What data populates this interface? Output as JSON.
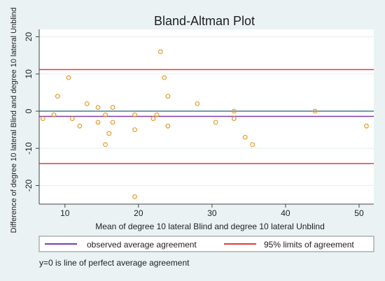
{
  "chart_data": {
    "type": "scatter",
    "title": "Bland-Altman Plot",
    "xlabel": "Mean of degree 10 lateral Blind and degree 10 lateral Unblind",
    "ylabel": "Difference of degree 10 lateral Blind and degree 10 lateral Unblind",
    "xlim": [
      6.5,
      52
    ],
    "ylim": [
      -25,
      22
    ],
    "x_ticks": [
      10,
      20,
      30,
      40,
      50
    ],
    "y_ticks": [
      -20,
      -10,
      0,
      10,
      20
    ],
    "grid": true,
    "points": [
      {
        "x": 7.0,
        "y": -2
      },
      {
        "x": 8.5,
        "y": -1
      },
      {
        "x": 9.0,
        "y": 4
      },
      {
        "x": 10.5,
        "y": 9
      },
      {
        "x": 11.0,
        "y": -2
      },
      {
        "x": 12.0,
        "y": -4
      },
      {
        "x": 13.0,
        "y": 2
      },
      {
        "x": 14.5,
        "y": 1
      },
      {
        "x": 14.5,
        "y": -3
      },
      {
        "x": 15.5,
        "y": -1
      },
      {
        "x": 15.5,
        "y": -9
      },
      {
        "x": 16.0,
        "y": -6
      },
      {
        "x": 16.5,
        "y": 1
      },
      {
        "x": 16.5,
        "y": -3
      },
      {
        "x": 19.5,
        "y": -1
      },
      {
        "x": 19.5,
        "y": -5
      },
      {
        "x": 19.5,
        "y": -23
      },
      {
        "x": 22.0,
        "y": -2
      },
      {
        "x": 22.5,
        "y": -1
      },
      {
        "x": 23.0,
        "y": 16
      },
      {
        "x": 23.5,
        "y": 9
      },
      {
        "x": 24.0,
        "y": 4
      },
      {
        "x": 24.0,
        "y": -4
      },
      {
        "x": 28.0,
        "y": 2
      },
      {
        "x": 30.5,
        "y": -3
      },
      {
        "x": 33.0,
        "y": 0
      },
      {
        "x": 33.0,
        "y": -2
      },
      {
        "x": 34.5,
        "y": -7
      },
      {
        "x": 35.5,
        "y": -9
      },
      {
        "x": 44.0,
        "y": 0
      },
      {
        "x": 51.0,
        "y": -4
      }
    ],
    "mean_difference": -1.4,
    "limits_of_agreement": [
      11.2,
      -14.1
    ],
    "zero_line": 0,
    "colors": {
      "points": "#e69b2c",
      "mean_line": "#7a3ea8",
      "limits_line": "#e23b3b",
      "zero_line": "#1f5f7a",
      "plot_bg": "#ffffff",
      "frame_bg": "#eaf2f3"
    },
    "legend": {
      "placement": "bottom",
      "items": [
        {
          "label": "observed average agreement",
          "color": "#7a3ea8"
        },
        {
          "label": "95% limits of agreement",
          "color": "#e23b3b"
        }
      ]
    },
    "note": "y=0 is line of perfect average agreement"
  }
}
